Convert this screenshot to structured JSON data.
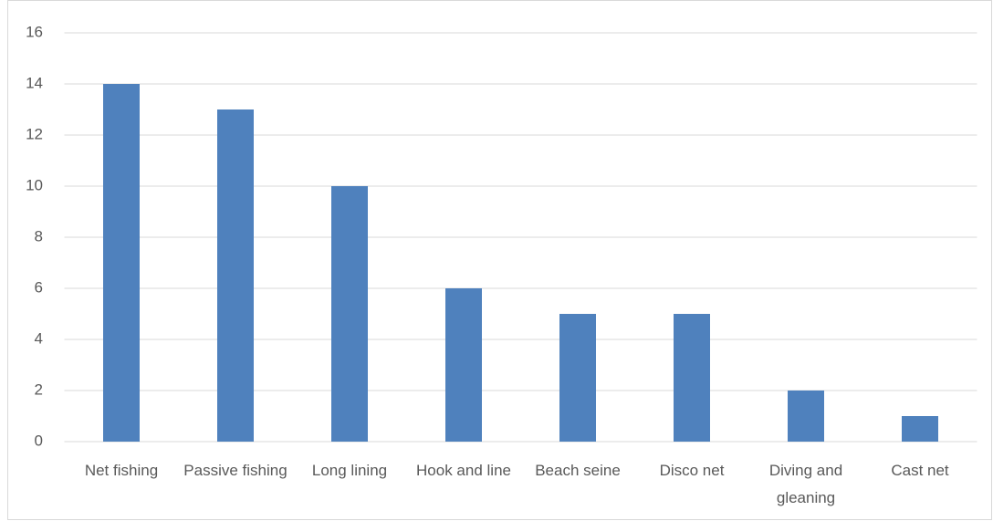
{
  "chart_data": {
    "type": "bar",
    "categories": [
      "Net fishing",
      "Passive fishing",
      "Long lining",
      "Hook and line",
      "Beach seine",
      "Disco net",
      "Diving and gleaning",
      "Cast net"
    ],
    "values": [
      14,
      13,
      10,
      6,
      5,
      5,
      2,
      1
    ],
    "color": "#4f81bd",
    "ylim": [
      0,
      16
    ],
    "yticks": [
      0,
      2,
      4,
      6,
      8,
      10,
      12,
      14,
      16
    ],
    "grid": true
  }
}
